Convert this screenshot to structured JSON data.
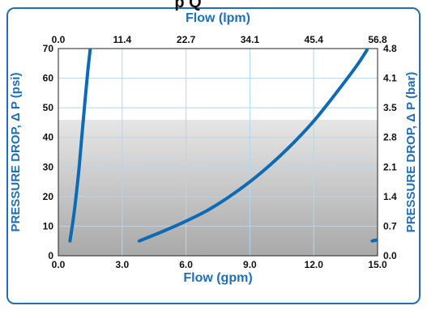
{
  "chart_data": {
    "type": "line",
    "title": "",
    "title_fragment": "p Q",
    "xlabel": "Flow (gpm)",
    "x2label": "Flow (lpm)",
    "ylabel": "PRESSURE DROP, Δ P (psi)",
    "y2label": "PRESSURE DROP, Δ P (bar)",
    "xlim": [
      0,
      15
    ],
    "ylim": [
      0,
      70
    ],
    "x_ticks": [
      0,
      3,
      6,
      9,
      12,
      15
    ],
    "x_tick_labels": [
      "0.0",
      "3.0",
      "6.0",
      "9.0",
      "12.0",
      "15.0"
    ],
    "x2_tick_labels": [
      "0.0",
      "11.4",
      "22.7",
      "34.1",
      "45.4",
      "56.8"
    ],
    "y_ticks": [
      0,
      10,
      20,
      30,
      40,
      50,
      60,
      70
    ],
    "y_tick_labels": [
      "0",
      "10",
      "20",
      "30",
      "40",
      "50",
      "60",
      "70"
    ],
    "y2_tick_labels": [
      "0.0",
      "0.7",
      "1.4",
      "2.1",
      "2.8",
      "3.5",
      "4.1",
      "4.8"
    ],
    "grid": true,
    "colors": {
      "line": "#0d6ab5",
      "grid": "#b5d6ee",
      "axis_title": "#1f6fb8",
      "frame": "#1f6fb8",
      "plot_top": "#ffffff",
      "shade_top": "#e6e6e6",
      "shade_bottom": "#a9a9a9"
    },
    "series": [
      {
        "x": [
          0.55,
          0.75,
          0.95,
          1.1,
          1.25,
          1.38,
          1.5
        ],
        "y": [
          5,
          15,
          28,
          40,
          52,
          62,
          70
        ]
      },
      {
        "x": [
          3.8,
          5.0,
          6.0,
          7.0,
          8.0,
          9.0,
          10.0,
          11.0,
          12.0,
          13.0,
          14.0,
          14.5
        ],
        "y": [
          5,
          8.5,
          11.7,
          15.3,
          19.8,
          25,
          31,
          37.8,
          45.5,
          54.5,
          64,
          69.5
        ]
      },
      {
        "x": [
          14.75,
          15.0
        ],
        "y": [
          5,
          5.4
        ]
      }
    ]
  }
}
